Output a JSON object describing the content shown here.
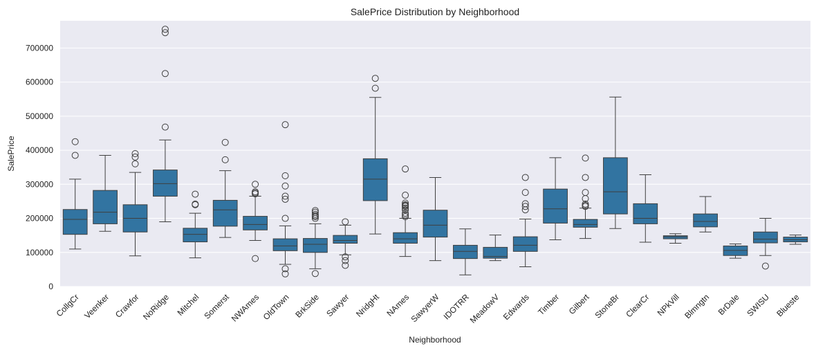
{
  "chart_data": {
    "type": "box",
    "title": "SalePrice Distribution by Neighborhood",
    "xlabel": "Neighborhood",
    "ylabel": "SalePrice",
    "ylim": [
      0,
      780000
    ],
    "yticks": [
      0,
      100000,
      200000,
      300000,
      400000,
      500000,
      600000,
      700000
    ],
    "grid": true,
    "box_color": "#3274a1",
    "background_color": "#eaeaf2",
    "categories": [
      "CollgCr",
      "Veenker",
      "Crawfor",
      "NoRidge",
      "Mitchel",
      "Somerst",
      "NWAmes",
      "OldTown",
      "BrkSide",
      "Sawyer",
      "NridgHt",
      "NAmes",
      "SawyerW",
      "IDOTRR",
      "MeadowV",
      "Edwards",
      "Timber",
      "Gilbert",
      "StoneBr",
      "ClearCr",
      "NPkVill",
      "Blmngtn",
      "BrDale",
      "SWISU",
      "Blueste"
    ],
    "boxes": [
      {
        "min": 110000,
        "q1": 153000,
        "median": 197000,
        "q3": 226000,
        "max": 315000,
        "outliers": [
          385000,
          425000
        ]
      },
      {
        "min": 162000,
        "q1": 184000,
        "median": 218000,
        "q3": 282000,
        "max": 385000,
        "outliers": []
      },
      {
        "min": 90000,
        "q1": 160000,
        "median": 200000,
        "q3": 240000,
        "max": 335000,
        "outliers": [
          360000,
          380000,
          390000
        ]
      },
      {
        "min": 190000,
        "q1": 265000,
        "median": 302000,
        "q3": 342000,
        "max": 430000,
        "outliers": [
          468000,
          625000,
          745000,
          755000
        ]
      },
      {
        "min": 84000,
        "q1": 131000,
        "median": 153000,
        "q3": 171000,
        "max": 215000,
        "outliers": [
          240000,
          242000,
          271000
        ]
      },
      {
        "min": 144000,
        "q1": 177000,
        "median": 225000,
        "q3": 253000,
        "max": 340000,
        "outliers": [
          372000,
          423000
        ]
      },
      {
        "min": 135000,
        "q1": 166000,
        "median": 182000,
        "q3": 206000,
        "max": 265000,
        "outliers": [
          82000,
          272000,
          275000,
          278000,
          300000
        ]
      },
      {
        "min": 65000,
        "q1": 105000,
        "median": 119000,
        "q3": 140000,
        "max": 178000,
        "outliers": [
          37000,
          52000,
          200000,
          256000,
          265000,
          295000,
          325000,
          475000
        ]
      },
      {
        "min": 52000,
        "q1": 100000,
        "median": 124000,
        "q3": 141000,
        "max": 184000,
        "outliers": [
          38000,
          200000,
          205000,
          208000,
          212000,
          218000,
          223000
        ]
      },
      {
        "min": 93000,
        "q1": 127000,
        "median": 135000,
        "q3": 150000,
        "max": 180000,
        "outliers": [
          62000,
          76000,
          87000,
          190000
        ]
      },
      {
        "min": 154000,
        "q1": 252000,
        "median": 315000,
        "q3": 375000,
        "max": 555000,
        "outliers": [
          582000,
          611000
        ]
      },
      {
        "min": 88000,
        "q1": 127000,
        "median": 140000,
        "q3": 158000,
        "max": 200000,
        "outliers": [
          205000,
          210000,
          215000,
          225000,
          230000,
          235000,
          238000,
          240000,
          245000,
          268000,
          345000
        ]
      },
      {
        "min": 76000,
        "q1": 145000,
        "median": 180000,
        "q3": 224000,
        "max": 320000,
        "outliers": []
      },
      {
        "min": 34000,
        "q1": 82000,
        "median": 103000,
        "q3": 121000,
        "max": 169000,
        "outliers": []
      },
      {
        "min": 76000,
        "q1": 83000,
        "median": 88000,
        "q3": 115000,
        "max": 151000,
        "outliers": []
      },
      {
        "min": 58000,
        "q1": 103000,
        "median": 121000,
        "q3": 146000,
        "max": 198000,
        "outliers": [
          225000,
          235000,
          243000,
          276000,
          320000
        ]
      },
      {
        "min": 137000,
        "q1": 186000,
        "median": 228000,
        "q3": 286000,
        "max": 378000,
        "outliers": []
      },
      {
        "min": 141000,
        "q1": 174000,
        "median": 182000,
        "q3": 197000,
        "max": 230000,
        "outliers": [
          235000,
          238000,
          242000,
          258000,
          276000,
          320000,
          377000
        ]
      },
      {
        "min": 170000,
        "q1": 213000,
        "median": 278000,
        "q3": 378000,
        "max": 556000,
        "outliers": []
      },
      {
        "min": 130000,
        "q1": 184000,
        "median": 200000,
        "q3": 243000,
        "max": 328000,
        "outliers": []
      },
      {
        "min": 127000,
        "q1": 140000,
        "median": 146000,
        "q3": 149000,
        "max": 155000,
        "outliers": []
      },
      {
        "min": 160000,
        "q1": 175000,
        "median": 191000,
        "q3": 213000,
        "max": 264000,
        "outliers": []
      },
      {
        "min": 83000,
        "q1": 91000,
        "median": 106000,
        "q3": 119000,
        "max": 125000,
        "outliers": []
      },
      {
        "min": 91000,
        "q1": 128000,
        "median": 139000,
        "q3": 160000,
        "max": 200000,
        "outliers": [
          60000
        ]
      },
      {
        "min": 124000,
        "q1": 131000,
        "median": 137000,
        "q3": 145000,
        "max": 151000,
        "outliers": []
      }
    ]
  }
}
